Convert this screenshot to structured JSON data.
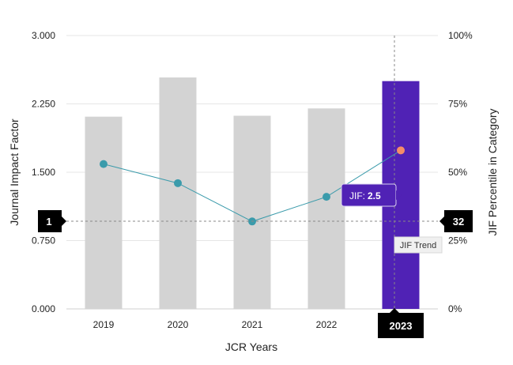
{
  "chart_data": {
    "type": "bar",
    "categories": [
      "2019",
      "2020",
      "2021",
      "2022",
      "2023"
    ],
    "series": [
      {
        "values": [
          2.11,
          2.54,
          2.12,
          2.2,
          2.5
        ],
        "axis": "left",
        "kind": "bar"
      },
      {
        "values": [
          53,
          46,
          32,
          41,
          58
        ],
        "axis": "right",
        "kind": "line"
      }
    ],
    "highlight_category": "2023",
    "xlabel": "JCR Years",
    "ylabel": "Journal Impact Factor",
    "y2label": "JIF Percentile in Category",
    "ylim": [
      0,
      3
    ],
    "y2lim": [
      0,
      100
    ],
    "y_ticks": [
      "0.000",
      "0.750",
      "1.500",
      "2.250",
      "3.000"
    ],
    "y2_ticks": [
      "0%",
      "25%",
      "50%",
      "75%",
      "100%"
    ],
    "grid": true,
    "colors": {
      "bar": "#d3d3d3",
      "bar_highlight": "#5022b5",
      "line": "#3b9bab",
      "point": "#3b9bab",
      "point_highlight": "#f58d68",
      "tag_bg": "#000000"
    }
  },
  "crosshair": {
    "left_tag": "1",
    "right_tag": "32",
    "x_tag": "2023",
    "tooltip_label": "JIF:",
    "tooltip_value": "2.5",
    "trend_label": "JIF Trend"
  }
}
